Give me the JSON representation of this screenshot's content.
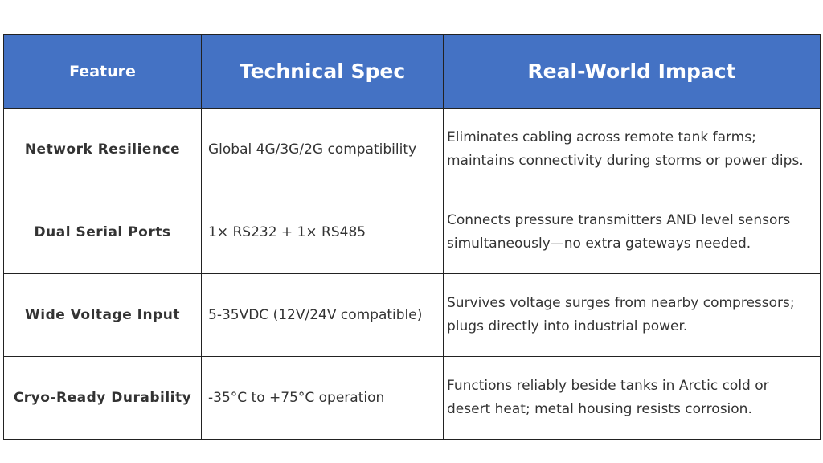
{
  "table": {
    "header": [
      "Feature",
      "Technical Spec",
      "Real-World Impact"
    ],
    "rows": [
      [
        "Network Resilience",
        "Global 4G/3G/2G compatibility",
        [
          "Eliminates cabling across remote tank farms;",
          "maintains connectivity during storms or power dips."
        ]
      ],
      [
        "Dual Serial Ports",
        "1× RS232 + 1× RS485",
        [
          "Connects pressure transmitters AND level sensors",
          "simultaneously—no extra gateways needed."
        ]
      ],
      [
        "Wide Voltage Input",
        "5-35VDC (12V/24V compatible)",
        [
          "Survives voltage surges from nearby compressors;",
          "plugs directly into industrial power."
        ]
      ],
      [
        "Cryo-Ready Durability",
        "-35°C to +75°C operation",
        [
          "Functions reliably beside tanks in Arctic cold or",
          "desert heat; metal housing resists corrosion."
        ]
      ]
    ]
  }
}
